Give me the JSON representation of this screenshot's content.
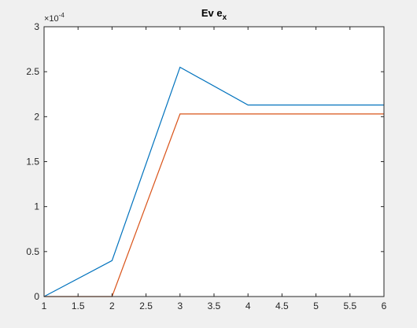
{
  "chart_data": {
    "type": "line",
    "title_main": "Ev e",
    "title_subscript": "x",
    "exponent_base": "×10",
    "exponent_power": "-4",
    "x": [
      1,
      2,
      3,
      4,
      5,
      6
    ],
    "xlim": [
      1,
      6
    ],
    "ylim": [
      0,
      3
    ],
    "xticks": [
      1,
      1.5,
      2,
      2.5,
      3,
      3.5,
      4,
      4.5,
      5,
      5.5,
      6
    ],
    "xtick_labels": [
      "1",
      "1.5",
      "2",
      "2.5",
      "3",
      "3.5",
      "4",
      "4.5",
      "5",
      "5.5",
      "6"
    ],
    "yticks": [
      0,
      0.5,
      1,
      1.5,
      2,
      2.5,
      3
    ],
    "ytick_labels": [
      "0",
      "0.5",
      "1",
      "1.5",
      "2",
      "2.5",
      "3"
    ],
    "grid": false,
    "series": [
      {
        "values": [
          0.0,
          0.4,
          2.55,
          2.13,
          2.13,
          2.13
        ],
        "color": "#0072bd"
      },
      {
        "values": [
          0.0,
          0.0,
          2.03,
          2.03,
          2.03,
          2.03
        ],
        "color": "#d95319"
      }
    ]
  }
}
